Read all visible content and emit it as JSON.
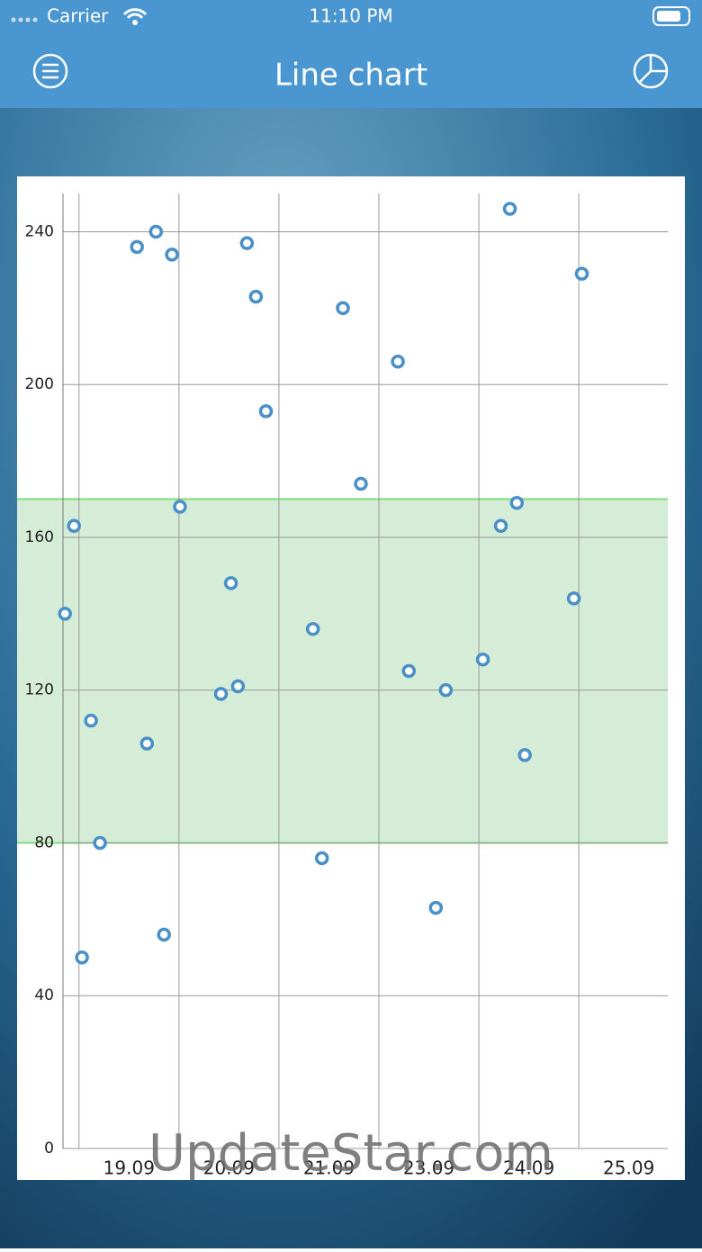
{
  "status_bar": {
    "carrier": "Carrier",
    "time": "11:10 PM"
  },
  "nav": {
    "title": "Line chart"
  },
  "chart_data": {
    "type": "line",
    "x": [
      -0.14,
      -0.05,
      0.03,
      0.12,
      0.21,
      0.58,
      0.68,
      0.77,
      0.85,
      0.93,
      1.01,
      1.42,
      1.52,
      1.59,
      1.68,
      1.77,
      1.87,
      2.34,
      2.43,
      2.64,
      2.82,
      3.19,
      3.3,
      3.57,
      3.67,
      4.04,
      4.22,
      4.31,
      4.38,
      4.46,
      4.95,
      5.03
    ],
    "values": [
      140,
      163,
      50,
      112,
      80,
      236,
      106,
      240,
      56,
      234,
      168,
      119,
      148,
      121,
      237,
      223,
      193,
      136,
      76,
      220,
      174,
      206,
      125,
      63,
      120,
      128,
      163,
      246,
      169,
      103,
      144,
      229
    ],
    "color": "#4a90c8",
    "xlim": [
      -0.16,
      5.89
    ],
    "xticks": [
      {
        "value": 0,
        "label": "19.09"
      },
      {
        "value": 1,
        "label": "20.09"
      },
      {
        "value": 2,
        "label": "21.09"
      },
      {
        "value": 3,
        "label": "23.09"
      },
      {
        "value": 4,
        "label": "24.09"
      },
      {
        "value": 5,
        "label": "25.09"
      }
    ],
    "ylim": [
      0,
      250
    ],
    "yticks": [
      0,
      40,
      80,
      120,
      160,
      200,
      240
    ],
    "grid": true,
    "band": {
      "range": [
        80,
        170
      ],
      "color": "#d5edd6",
      "edge_color": "#7edc7e"
    }
  },
  "watermark": "UpdateStar.com"
}
